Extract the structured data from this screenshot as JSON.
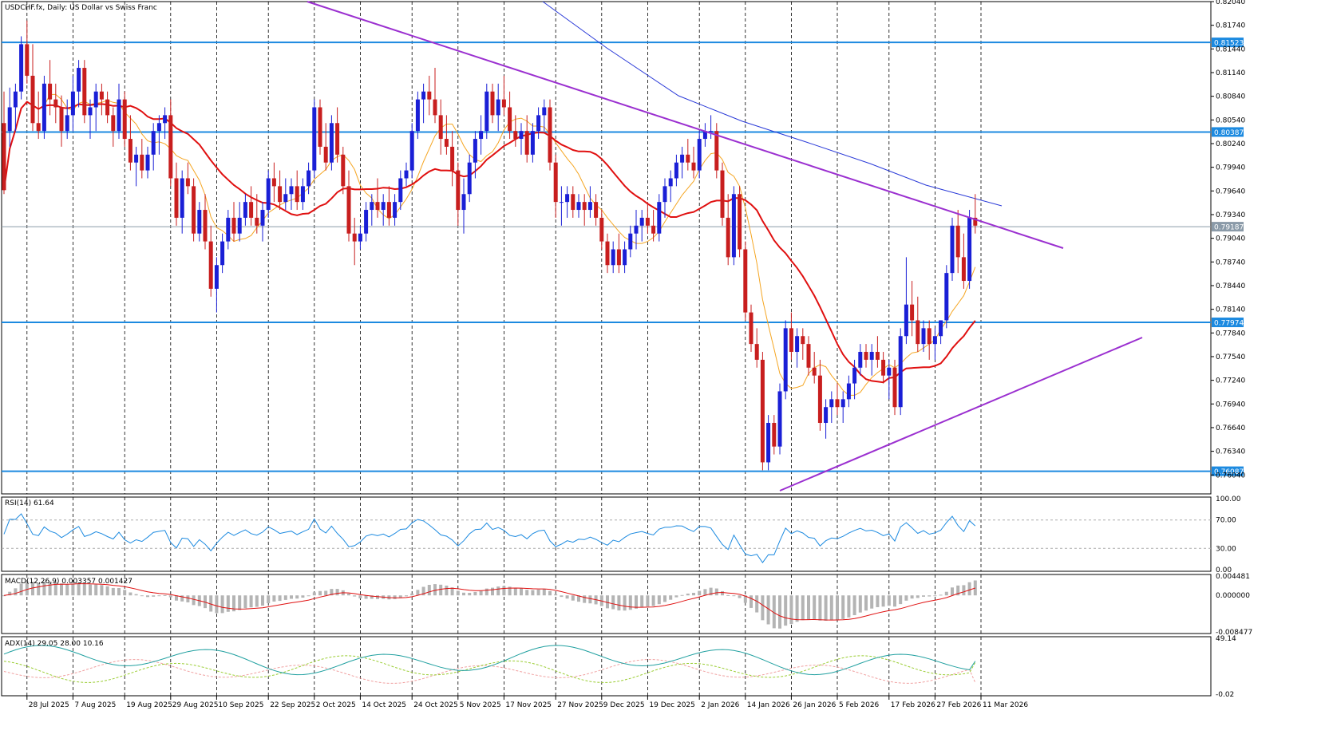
{
  "title": "USDCHF.fx, Daily:  US Dollar vs Swiss Franc",
  "colors": {
    "bull": "#1a1fd6",
    "bear": "#c81e1e",
    "ma_fast": "#f5a623",
    "ma_mid": "#e01010",
    "ma_slow": "#2a3ad8",
    "trend": "#9b30d0",
    "level": "#1c8ae0",
    "rsi": "#1c8ae0",
    "macd_signal": "#e01010",
    "macd_hist": "#b4b4b4",
    "adx_main": "#20a0a0",
    "adx_plus": "#9acd32",
    "adx_minus": "#f0a0a0"
  },
  "chart_data": [
    {
      "type": "candlestick",
      "name": "USDCHF.fx Daily",
      "ylim": [
        0.758,
        0.8204
      ],
      "y_ticks": [
        "0.82040",
        "0.81740",
        "0.81440",
        "0.81140",
        "0.80840",
        "0.80540",
        "0.80240",
        "0.79940",
        "0.79640",
        "0.79340",
        "0.79040",
        "0.78740",
        "0.78440",
        "0.78140",
        "0.77840",
        "0.77540",
        "0.77240",
        "0.76940",
        "0.76640",
        "0.76340",
        "0.76040"
      ],
      "x_labels": [
        "28 Jul 2025",
        "7 Aug 2025",
        "19 Aug 2025",
        "29 Aug 2025",
        "10 Sep 2025",
        "22 Sep 2025",
        "2 Oct 2025",
        "14 Oct 2025",
        "24 Oct 2025",
        "5 Nov 2025",
        "17 Nov 2025",
        "27 Nov 2025",
        "9 Dec 2025",
        "19 Dec 2025",
        "2 Jan 2026",
        "14 Jan 2026",
        "26 Jan 2026",
        "5 Feb 2026",
        "17 Feb 2026",
        "27 Feb 2026",
        "11 Mar 2026"
      ],
      "candles_ohlc": [
        [
          0.805,
          0.809,
          0.796,
          0.7965
        ],
        [
          0.804,
          0.8095,
          0.802,
          0.807
        ],
        [
          0.807,
          0.81,
          0.804,
          0.809
        ],
        [
          0.809,
          0.816,
          0.808,
          0.815
        ],
        [
          0.815,
          0.818,
          0.81,
          0.811
        ],
        [
          0.811,
          0.815,
          0.804,
          0.805
        ],
        [
          0.805,
          0.809,
          0.803,
          0.804
        ],
        [
          0.804,
          0.811,
          0.803,
          0.81
        ],
        [
          0.81,
          0.813,
          0.806,
          0.808
        ],
        [
          0.808,
          0.81,
          0.805,
          0.807
        ],
        [
          0.807,
          0.8085,
          0.802,
          0.804
        ],
        [
          0.804,
          0.808,
          0.803,
          0.806
        ],
        [
          0.806,
          0.811,
          0.804,
          0.809
        ],
        [
          0.809,
          0.813,
          0.807,
          0.812
        ],
        [
          0.812,
          0.813,
          0.805,
          0.806
        ],
        [
          0.806,
          0.808,
          0.803,
          0.807
        ],
        [
          0.807,
          0.81,
          0.804,
          0.809
        ],
        [
          0.809,
          0.81,
          0.806,
          0.808
        ],
        [
          0.808,
          0.809,
          0.805,
          0.806
        ],
        [
          0.806,
          0.807,
          0.802,
          0.804
        ],
        [
          0.804,
          0.81,
          0.803,
          0.808
        ],
        [
          0.808,
          0.809,
          0.802,
          0.803
        ],
        [
          0.803,
          0.806,
          0.799,
          0.8
        ],
        [
          0.8,
          0.802,
          0.797,
          0.801
        ],
        [
          0.801,
          0.803,
          0.798,
          0.799
        ],
        [
          0.799,
          0.802,
          0.798,
          0.801
        ],
        [
          0.801,
          0.805,
          0.799,
          0.804
        ],
        [
          0.804,
          0.806,
          0.801,
          0.805
        ],
        [
          0.805,
          0.807,
          0.803,
          0.806
        ],
        [
          0.806,
          0.808,
          0.797,
          0.798
        ],
        [
          0.798,
          0.8,
          0.792,
          0.793
        ],
        [
          0.793,
          0.799,
          0.791,
          0.798
        ],
        [
          0.798,
          0.8,
          0.796,
          0.797
        ],
        [
          0.797,
          0.798,
          0.79,
          0.791
        ],
        [
          0.791,
          0.795,
          0.79,
          0.794
        ],
        [
          0.794,
          0.796,
          0.789,
          0.79
        ],
        [
          0.79,
          0.792,
          0.783,
          0.784
        ],
        [
          0.784,
          0.788,
          0.781,
          0.787
        ],
        [
          0.787,
          0.791,
          0.786,
          0.79
        ],
        [
          0.79,
          0.794,
          0.789,
          0.793
        ],
        [
          0.793,
          0.795,
          0.79,
          0.791
        ],
        [
          0.791,
          0.795,
          0.79,
          0.793
        ],
        [
          0.793,
          0.796,
          0.792,
          0.795
        ],
        [
          0.795,
          0.797,
          0.792,
          0.793
        ],
        [
          0.793,
          0.796,
          0.791,
          0.792
        ],
        [
          0.792,
          0.795,
          0.79,
          0.794
        ],
        [
          0.794,
          0.799,
          0.793,
          0.798
        ],
        [
          0.798,
          0.8,
          0.795,
          0.797
        ],
        [
          0.797,
          0.799,
          0.794,
          0.795
        ],
        [
          0.795,
          0.798,
          0.794,
          0.796
        ],
        [
          0.796,
          0.798,
          0.794,
          0.797
        ],
        [
          0.797,
          0.799,
          0.794,
          0.795
        ],
        [
          0.795,
          0.798,
          0.794,
          0.797
        ],
        [
          0.797,
          0.8,
          0.796,
          0.799
        ],
        [
          0.799,
          0.808,
          0.798,
          0.807
        ],
        [
          0.807,
          0.808,
          0.801,
          0.802
        ],
        [
          0.802,
          0.805,
          0.799,
          0.8
        ],
        [
          0.8,
          0.806,
          0.799,
          0.805
        ],
        [
          0.805,
          0.807,
          0.8,
          0.801
        ],
        [
          0.801,
          0.802,
          0.796,
          0.797
        ],
        [
          0.797,
          0.799,
          0.79,
          0.791
        ],
        [
          0.791,
          0.793,
          0.787,
          0.79
        ],
        [
          0.79,
          0.792,
          0.789,
          0.791
        ],
        [
          0.791,
          0.795,
          0.79,
          0.794
        ],
        [
          0.794,
          0.796,
          0.792,
          0.795
        ],
        [
          0.795,
          0.798,
          0.793,
          0.794
        ],
        [
          0.794,
          0.796,
          0.792,
          0.795
        ],
        [
          0.795,
          0.797,
          0.792,
          0.793
        ],
        [
          0.793,
          0.796,
          0.792,
          0.795
        ],
        [
          0.795,
          0.799,
          0.794,
          0.798
        ],
        [
          0.798,
          0.8,
          0.797,
          0.799
        ],
        [
          0.799,
          0.805,
          0.798,
          0.804
        ],
        [
          0.804,
          0.809,
          0.803,
          0.808
        ],
        [
          0.808,
          0.81,
          0.805,
          0.809
        ],
        [
          0.809,
          0.811,
          0.806,
          0.808
        ],
        [
          0.808,
          0.812,
          0.805,
          0.806
        ],
        [
          0.806,
          0.808,
          0.801,
          0.803
        ],
        [
          0.803,
          0.806,
          0.801,
          0.802
        ],
        [
          0.802,
          0.804,
          0.797,
          0.799
        ],
        [
          0.799,
          0.8,
          0.792,
          0.794
        ],
        [
          0.794,
          0.798,
          0.791,
          0.796
        ],
        [
          0.796,
          0.801,
          0.795,
          0.8
        ],
        [
          0.8,
          0.804,
          0.798,
          0.803
        ],
        [
          0.803,
          0.806,
          0.801,
          0.804
        ],
        [
          0.804,
          0.81,
          0.803,
          0.809
        ],
        [
          0.809,
          0.81,
          0.805,
          0.806
        ],
        [
          0.806,
          0.81,
          0.804,
          0.808
        ],
        [
          0.808,
          0.811,
          0.806,
          0.807
        ],
        [
          0.807,
          0.809,
          0.803,
          0.804
        ],
        [
          0.804,
          0.806,
          0.802,
          0.803
        ],
        [
          0.803,
          0.805,
          0.801,
          0.804
        ],
        [
          0.804,
          0.806,
          0.8,
          0.801
        ],
        [
          0.801,
          0.805,
          0.8,
          0.804
        ],
        [
          0.804,
          0.807,
          0.803,
          0.806
        ],
        [
          0.806,
          0.808,
          0.804,
          0.807
        ],
        [
          0.807,
          0.808,
          0.799,
          0.8
        ],
        [
          0.8,
          0.801,
          0.793,
          0.795
        ],
        [
          0.795,
          0.797,
          0.792,
          0.795
        ],
        [
          0.795,
          0.797,
          0.793,
          0.796
        ],
        [
          0.796,
          0.797,
          0.793,
          0.794
        ],
        [
          0.794,
          0.796,
          0.793,
          0.795
        ],
        [
          0.795,
          0.796,
          0.792,
          0.794
        ],
        [
          0.794,
          0.797,
          0.793,
          0.795
        ],
        [
          0.795,
          0.796,
          0.792,
          0.793
        ],
        [
          0.793,
          0.794,
          0.789,
          0.79
        ],
        [
          0.79,
          0.791,
          0.786,
          0.787
        ],
        [
          0.787,
          0.79,
          0.786,
          0.789
        ],
        [
          0.789,
          0.791,
          0.786,
          0.787
        ],
        [
          0.787,
          0.79,
          0.786,
          0.789
        ],
        [
          0.789,
          0.792,
          0.788,
          0.791
        ],
        [
          0.791,
          0.794,
          0.789,
          0.792
        ],
        [
          0.792,
          0.794,
          0.79,
          0.793
        ],
        [
          0.793,
          0.795,
          0.791,
          0.792
        ],
        [
          0.792,
          0.794,
          0.79,
          0.791
        ],
        [
          0.791,
          0.796,
          0.79,
          0.795
        ],
        [
          0.795,
          0.798,
          0.793,
          0.797
        ],
        [
          0.797,
          0.799,
          0.795,
          0.798
        ],
        [
          0.798,
          0.801,
          0.797,
          0.8
        ],
        [
          0.8,
          0.802,
          0.798,
          0.801
        ],
        [
          0.801,
          0.803,
          0.799,
          0.8
        ],
        [
          0.8,
          0.802,
          0.798,
          0.799
        ],
        [
          0.799,
          0.804,
          0.798,
          0.803
        ],
        [
          0.803,
          0.805,
          0.802,
          0.804
        ],
        [
          0.804,
          0.806,
          0.803,
          0.804
        ],
        [
          0.804,
          0.805,
          0.798,
          0.799
        ],
        [
          0.799,
          0.8,
          0.792,
          0.793
        ],
        [
          0.793,
          0.796,
          0.787,
          0.788
        ],
        [
          0.788,
          0.797,
          0.787,
          0.796
        ],
        [
          0.796,
          0.797,
          0.788,
          0.789
        ],
        [
          0.789,
          0.79,
          0.78,
          0.781
        ],
        [
          0.781,
          0.782,
          0.776,
          0.777
        ],
        [
          0.777,
          0.779,
          0.774,
          0.775
        ],
        [
          0.775,
          0.776,
          0.761,
          0.762
        ],
        [
          0.762,
          0.768,
          0.761,
          0.767
        ],
        [
          0.767,
          0.768,
          0.763,
          0.764
        ],
        [
          0.764,
          0.772,
          0.763,
          0.771
        ],
        [
          0.771,
          0.78,
          0.77,
          0.779
        ],
        [
          0.779,
          0.781,
          0.775,
          0.776
        ],
        [
          0.776,
          0.779,
          0.774,
          0.778
        ],
        [
          0.778,
          0.779,
          0.775,
          0.777
        ],
        [
          0.777,
          0.778,
          0.773,
          0.774
        ],
        [
          0.774,
          0.776,
          0.772,
          0.773
        ],
        [
          0.773,
          0.775,
          0.766,
          0.767
        ],
        [
          0.767,
          0.77,
          0.765,
          0.769
        ],
        [
          0.769,
          0.771,
          0.767,
          0.77
        ],
        [
          0.77,
          0.772,
          0.768,
          0.769
        ],
        [
          0.769,
          0.771,
          0.767,
          0.77
        ],
        [
          0.77,
          0.773,
          0.769,
          0.772
        ],
        [
          0.772,
          0.775,
          0.77,
          0.774
        ],
        [
          0.774,
          0.777,
          0.773,
          0.776
        ],
        [
          0.776,
          0.777,
          0.774,
          0.775
        ],
        [
          0.775,
          0.777,
          0.773,
          0.776
        ],
        [
          0.776,
          0.778,
          0.774,
          0.775
        ],
        [
          0.775,
          0.776,
          0.772,
          0.773
        ],
        [
          0.773,
          0.775,
          0.77,
          0.774
        ],
        [
          0.774,
          0.775,
          0.768,
          0.769
        ],
        [
          0.769,
          0.779,
          0.768,
          0.778
        ],
        [
          0.778,
          0.788,
          0.777,
          0.782
        ],
        [
          0.782,
          0.785,
          0.778,
          0.78
        ],
        [
          0.78,
          0.783,
          0.776,
          0.777
        ],
        [
          0.777,
          0.78,
          0.776,
          0.779
        ],
        [
          0.779,
          0.78,
          0.775,
          0.777
        ],
        [
          0.777,
          0.779,
          0.775,
          0.778
        ],
        [
          0.778,
          0.78,
          0.777,
          0.78
        ],
        [
          0.78,
          0.787,
          0.779,
          0.786
        ],
        [
          0.786,
          0.793,
          0.785,
          0.792
        ],
        [
          0.792,
          0.794,
          0.786,
          0.788
        ],
        [
          0.788,
          0.791,
          0.784,
          0.785
        ],
        [
          0.785,
          0.794,
          0.784,
          0.793
        ],
        [
          0.793,
          0.796,
          0.791,
          0.792
        ]
      ],
      "moving_averages": [
        {
          "name": "MA fast",
          "color_key": "ma_fast"
        },
        {
          "name": "MA mid",
          "color_key": "ma_mid"
        },
        {
          "name": "MA slow",
          "color_key": "ma_slow"
        }
      ],
      "horizontal_levels": [
        {
          "label": "0.81523",
          "value": 0.81523
        },
        {
          "label": "0.80387",
          "value": 0.80387
        },
        {
          "label": "0.79187",
          "value": 0.79187
        },
        {
          "label": "0.77974",
          "value": 0.77974
        },
        {
          "label": "0.76087",
          "value": 0.76087
        }
      ],
      "trendlines": [
        {
          "name": "descending resistance",
          "from": [
            "28 Jul 2025",
            0.8204
          ],
          "to": [
            "11 Mar 2026+",
            0.7907
          ]
        },
        {
          "name": "ascending support",
          "from": [
            "26 Jan 2026",
            0.7608
          ],
          "to": [
            "11 Mar 2026+",
            0.779
          ]
        }
      ]
    },
    {
      "type": "line",
      "name": "RSI(14)",
      "header": "RSI(14) 61.64",
      "ylim": [
        0,
        100
      ],
      "y_ticks": [
        "100.00",
        "70.00",
        "30.00",
        "0.00"
      ],
      "levels": [
        70,
        30
      ],
      "last_value": 61.64
    },
    {
      "type": "bar",
      "name": "MACD(12,26,9)",
      "header": "MACD(12,26,9) 0.003357 0.001427",
      "y_ticks": [
        "0.004481",
        "0.000000",
        "-0.008477"
      ],
      "ylim": [
        -0.008477,
        0.004481
      ],
      "macd": 0.003357,
      "signal": 0.001427
    },
    {
      "type": "line",
      "name": "ADX(14)",
      "header": "ADX(14) 29.05 28.00 10.16",
      "y_ticks": [
        "49.14",
        "-0.02"
      ],
      "ylim": [
        -0.02,
        49.14
      ],
      "adx": 29.05,
      "plus_di": 28.0,
      "minus_di": 10.16
    }
  ]
}
